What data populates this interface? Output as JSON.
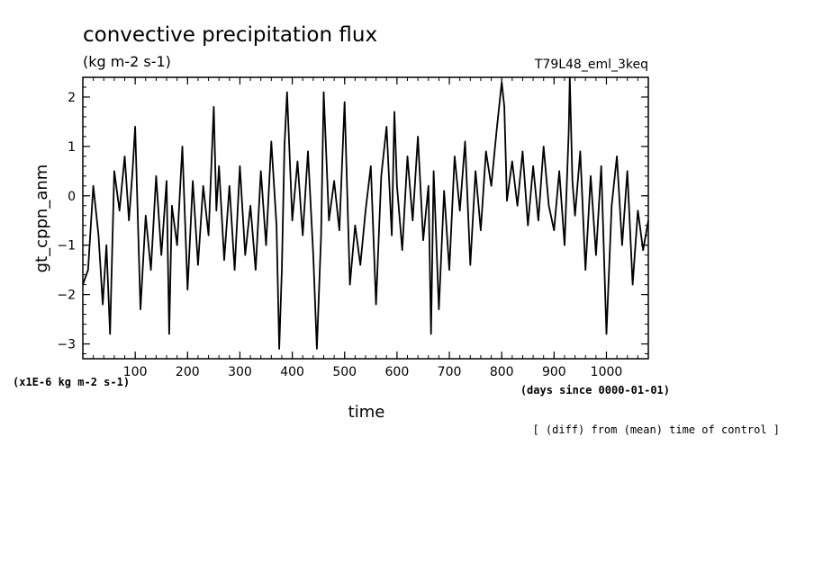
{
  "chart_data": {
    "type": "line",
    "title": "convective precipitation flux",
    "units": "(kg m-2 s-1)",
    "run_label": "T79L48_eml_3keq",
    "ylabel": "gt_cppn_anm",
    "xlabel": "time",
    "y_scale_note": "(x1E-6 kg m-2 s-1)",
    "x_units_note": "(days since 0000-01-01)",
    "footnote": "[ (diff) from (mean) time of control ]",
    "xlim": [
      0,
      1080
    ],
    "ylim": [
      -3.3,
      2.4
    ],
    "x_ticks": [
      100,
      200,
      300,
      400,
      500,
      600,
      700,
      800,
      900,
      1000
    ],
    "x_tick_labels": [
      "100",
      "200",
      "300",
      "400",
      "500",
      "600",
      "700",
      "800",
      "900",
      "1000"
    ],
    "y_ticks": [
      -3,
      -2,
      -1,
      0,
      1,
      2
    ],
    "y_tick_labels": [
      "−3",
      "−2",
      "−1",
      "0",
      "1",
      "2"
    ],
    "series": [
      {
        "name": "gt_cppn_anm",
        "x": [
          0,
          10,
          20,
          30,
          38,
          45,
          52,
          60,
          70,
          80,
          88,
          95,
          100,
          110,
          120,
          130,
          140,
          150,
          160,
          165,
          170,
          180,
          190,
          200,
          210,
          220,
          230,
          240,
          250,
          255,
          260,
          270,
          280,
          290,
          300,
          310,
          320,
          330,
          340,
          350,
          360,
          370,
          375,
          380,
          385,
          390,
          400,
          410,
          420,
          430,
          440,
          447,
          455,
          460,
          470,
          480,
          490,
          500,
          510,
          520,
          530,
          540,
          550,
          560,
          570,
          580,
          590,
          595,
          600,
          610,
          620,
          630,
          640,
          650,
          660,
          665,
          670,
          680,
          690,
          700,
          710,
          720,
          730,
          740,
          750,
          760,
          770,
          780,
          790,
          800,
          805,
          810,
          820,
          830,
          840,
          850,
          860,
          870,
          880,
          890,
          900,
          910,
          920,
          928,
          930,
          935,
          940,
          950,
          960,
          970,
          980,
          990,
          1000,
          1010,
          1020,
          1030,
          1040,
          1050,
          1060,
          1070,
          1080
        ],
        "y": [
          -1.8,
          -1.5,
          0.2,
          -0.8,
          -2.2,
          -1.0,
          -2.8,
          0.5,
          -0.3,
          0.8,
          -0.5,
          0.5,
          1.4,
          -2.3,
          -0.4,
          -1.5,
          0.4,
          -1.2,
          0.3,
          -2.8,
          -0.2,
          -1.0,
          1.0,
          -1.9,
          0.3,
          -1.4,
          0.2,
          -0.8,
          1.8,
          -0.3,
          0.6,
          -1.3,
          0.2,
          -1.5,
          0.6,
          -1.2,
          -0.2,
          -1.5,
          0.5,
          -1.0,
          1.1,
          -0.6,
          -3.1,
          -1.5,
          1.0,
          2.1,
          -0.5,
          0.7,
          -0.8,
          0.9,
          -1.2,
          -3.1,
          -0.8,
          2.1,
          -0.5,
          0.3,
          -0.7,
          1.9,
          -1.8,
          -0.6,
          -1.4,
          -0.3,
          0.6,
          -2.2,
          0.4,
          1.4,
          -0.8,
          1.7,
          0.2,
          -1.1,
          0.8,
          -0.5,
          1.2,
          -0.9,
          0.2,
          -2.8,
          0.5,
          -2.3,
          0.1,
          -1.5,
          0.8,
          -0.3,
          1.1,
          -1.4,
          0.5,
          -0.7,
          0.9,
          0.2,
          1.3,
          2.3,
          1.8,
          -0.1,
          0.7,
          -0.2,
          0.9,
          -0.6,
          0.6,
          -0.5,
          1.0,
          -0.2,
          -0.7,
          0.5,
          -1.0,
          1.3,
          2.4,
          0.3,
          -0.4,
          0.9,
          -1.5,
          0.4,
          -1.2,
          0.6,
          -2.8,
          -0.2,
          0.8,
          -1.0,
          0.5,
          -1.8,
          -0.3,
          -1.1,
          -0.5
        ]
      }
    ]
  }
}
